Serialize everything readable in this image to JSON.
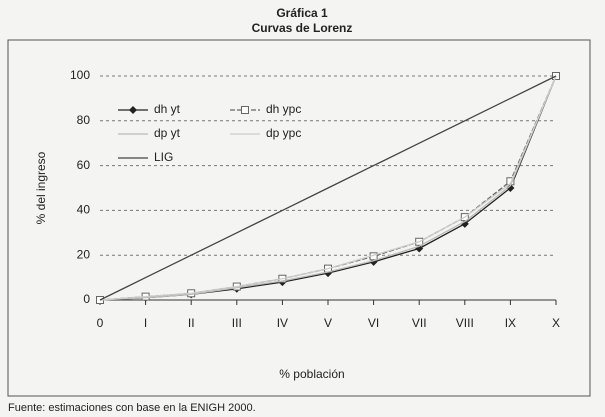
{
  "chart_data": {
    "type": "line",
    "title": "Gráfica 1",
    "subtitle": "Curvas de Lorenz",
    "x_label": "% población",
    "y_label": "% del ingreso",
    "source": "Fuente: estimaciones con base en la ENIGH 2000.",
    "categories": [
      "0",
      "I",
      "II",
      "III",
      "IV",
      "V",
      "VI",
      "VII",
      "VIII",
      "IX",
      "X"
    ],
    "series": [
      {
        "name": "dh yt",
        "color": "#222222",
        "marker": "diamond",
        "values": [
          0,
          1,
          2.5,
          5,
          8,
          12,
          17,
          23,
          34,
          50,
          100
        ]
      },
      {
        "name": "dh ypc",
        "color": "#666666",
        "marker": "square",
        "dash": true,
        "values": [
          0,
          1.5,
          3,
          6,
          9.5,
          14,
          19.5,
          26,
          37,
          53,
          100
        ]
      },
      {
        "name": "dp yt",
        "color": "#bbbbbb",
        "marker": "none",
        "values": [
          0,
          1,
          2.5,
          5.5,
          8.5,
          12.5,
          17.5,
          24,
          35,
          51,
          100
        ]
      },
      {
        "name": "dp ypc",
        "color": "#cccccc",
        "marker": "none",
        "values": [
          0,
          1.5,
          3,
          6,
          9.5,
          14,
          20,
          26,
          37,
          52,
          100
        ]
      },
      {
        "name": "LIG",
        "color": "#444444",
        "marker": "none",
        "values": [
          0,
          10,
          20,
          30,
          40,
          50,
          60,
          70,
          80,
          90,
          100
        ]
      }
    ],
    "ylim": [
      0,
      100
    ],
    "yticks": [
      0,
      20,
      40,
      60,
      80,
      100
    ],
    "grid": true,
    "legend": "upper left"
  }
}
